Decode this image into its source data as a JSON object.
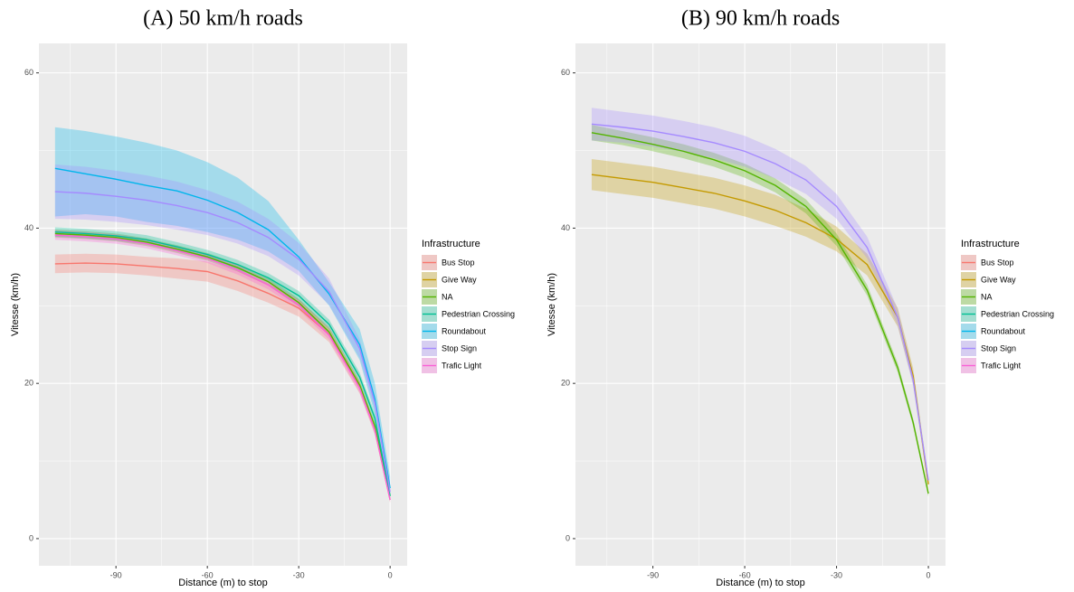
{
  "chart_data": [
    {
      "type": "line",
      "title": "(A) 50 km/h roads",
      "x_label": "Distance (m) to stop",
      "y_label": "Vitesse (km/h)",
      "legend_title": "Infrastructure",
      "legend_position": "right",
      "grid": true,
      "xlim": [
        -115.3,
        5.6
      ],
      "ylim": [
        -3.5,
        63.8
      ],
      "xticks": [
        -90,
        -60,
        -30,
        0
      ],
      "yticks": [
        0,
        20,
        40,
        60
      ],
      "minor_xticks": [
        -105,
        -75,
        -45,
        -15
      ],
      "minor_yticks": [
        10,
        30,
        50
      ],
      "x": [
        -110,
        -100,
        -90,
        -80,
        -70,
        -60,
        -50,
        -40,
        -30,
        -20,
        -10,
        -5,
        0
      ],
      "series": [
        {
          "name": "Bus Stop",
          "color": "#F8766D",
          "values": [
            35.4,
            35.5,
            35.4,
            35.1,
            34.8,
            34.4,
            33.2,
            31.6,
            29.7,
            26.3,
            19.5,
            14,
            5
          ],
          "lower": [
            34.2,
            34.3,
            34.2,
            33.9,
            33.5,
            33.1,
            31.9,
            30.4,
            28.6,
            25.3,
            18.7,
            13.4,
            4.6
          ],
          "upper": [
            36.6,
            36.7,
            36.6,
            36.3,
            36.1,
            35.7,
            34.5,
            32.8,
            30.8,
            27.3,
            20.3,
            14.6,
            5.4
          ]
        },
        {
          "name": "Give Way",
          "color": "#C49A00",
          "values": [
            null,
            null,
            null,
            null,
            null,
            null,
            null,
            null,
            null,
            null,
            null,
            null,
            null
          ],
          "lower": [
            null,
            null,
            null,
            null,
            null,
            null,
            null,
            null,
            null,
            null,
            null,
            null,
            null
          ],
          "upper": [
            null,
            null,
            null,
            null,
            null,
            null,
            null,
            null,
            null,
            null,
            null,
            null,
            null
          ]
        },
        {
          "name": "NA",
          "color": "#53B400",
          "values": [
            39.3,
            39.1,
            38.8,
            38.2,
            37.3,
            36.3,
            34.9,
            33.1,
            30.4,
            26.6,
            19.8,
            14.5,
            5.5
          ],
          "lower": [
            38.8,
            38.6,
            38.3,
            37.7,
            36.8,
            35.8,
            34.4,
            32.6,
            29.9,
            26.1,
            19.3,
            14,
            5.1
          ],
          "upper": [
            39.8,
            39.6,
            39.3,
            38.7,
            37.8,
            36.8,
            35.4,
            33.6,
            30.9,
            27.1,
            20.3,
            15,
            5.9
          ]
        },
        {
          "name": "Pedestrian Crossing",
          "color": "#00C094",
          "values": [
            39.5,
            39.3,
            39.0,
            38.5,
            37.6,
            36.6,
            35.3,
            33.6,
            31.3,
            27.6,
            20.8,
            15.5,
            5.5
          ],
          "lower": [
            38.9,
            38.7,
            38.4,
            37.9,
            37.0,
            36.0,
            34.7,
            33.0,
            30.7,
            27.0,
            20.2,
            14.9,
            5.1
          ],
          "upper": [
            40.1,
            39.9,
            39.6,
            39.1,
            38.2,
            37.2,
            35.9,
            34.2,
            31.9,
            28.2,
            21.4,
            16.1,
            5.9
          ]
        },
        {
          "name": "Roundabout",
          "color": "#00B6EB",
          "values": [
            47.7,
            47.0,
            46.3,
            45.5,
            44.8,
            43.6,
            42.0,
            39.8,
            36.3,
            31.5,
            25,
            18,
            6.5
          ],
          "lower": [
            41.5,
            41.8,
            41.5,
            40.8,
            40.3,
            39.5,
            38.5,
            37,
            34.5,
            30,
            23,
            16,
            5
          ],
          "upper": [
            53,
            52.5,
            51.8,
            51,
            50,
            48.5,
            46.5,
            43.5,
            38.5,
            33,
            27,
            20,
            8
          ]
        },
        {
          "name": "Stop Sign",
          "color": "#A58AFF",
          "values": [
            44.7,
            44.5,
            44.1,
            43.6,
            42.9,
            42,
            40.7,
            38.8,
            36,
            31.8,
            24.5,
            17.5,
            6
          ],
          "lower": [
            41.2,
            41.1,
            40.8,
            40.4,
            39.8,
            39.1,
            38.0,
            36.4,
            33.9,
            30.1,
            23.3,
            16.6,
            5.4
          ],
          "upper": [
            48.2,
            47.9,
            47.4,
            46.8,
            46.0,
            44.9,
            43.4,
            41.2,
            38.1,
            33.5,
            25.7,
            18.4,
            6.6
          ]
        },
        {
          "name": "Trafic Light",
          "color": "#FB61D7",
          "values": [
            39.1,
            38.9,
            38.6,
            38.0,
            37.1,
            36.1,
            34.6,
            32.7,
            30.1,
            26.2,
            19.4,
            14,
            5
          ],
          "lower": [
            38.5,
            38.3,
            38.0,
            37.4,
            36.5,
            35.5,
            34.0,
            32.1,
            29.5,
            25.6,
            18.8,
            13.5,
            4.7
          ],
          "upper": [
            39.7,
            39.5,
            39.2,
            38.6,
            37.7,
            36.7,
            35.2,
            33.3,
            30.7,
            26.8,
            20.0,
            14.5,
            5.3
          ]
        }
      ]
    },
    {
      "type": "line",
      "title": "(B) 90 km/h roads",
      "x_label": "Distance (m) to stop",
      "y_label": "Vitesse (km/h)",
      "legend_title": "Infrastructure",
      "legend_position": "right",
      "grid": true,
      "xlim": [
        -115.3,
        5.6
      ],
      "ylim": [
        -3.5,
        63.8
      ],
      "xticks": [
        -90,
        -60,
        -30,
        0
      ],
      "yticks": [
        0,
        20,
        40,
        60
      ],
      "minor_xticks": [
        -105,
        -75,
        -45,
        -15
      ],
      "minor_yticks": [
        10,
        30,
        50
      ],
      "x": [
        -110,
        -100,
        -90,
        -80,
        -70,
        -60,
        -50,
        -40,
        -30,
        -20,
        -10,
        -5,
        0
      ],
      "series": [
        {
          "name": "Bus Stop",
          "color": "#F8766D",
          "values": [
            null,
            null,
            null,
            null,
            null,
            null,
            null,
            null,
            null,
            null,
            null,
            null,
            null
          ],
          "lower": [
            null,
            null,
            null,
            null,
            null,
            null,
            null,
            null,
            null,
            null,
            null,
            null,
            null
          ],
          "upper": [
            null,
            null,
            null,
            null,
            null,
            null,
            null,
            null,
            null,
            null,
            null,
            null,
            null
          ]
        },
        {
          "name": "Give Way",
          "color": "#C49A00",
          "values": [
            46.9,
            46.4,
            45.9,
            45.2,
            44.5,
            43.5,
            42.3,
            40.7,
            38.6,
            35.3,
            28.5,
            21,
            7
          ],
          "lower": [
            44.9,
            44.4,
            43.9,
            43.2,
            42.5,
            41.5,
            40.3,
            38.9,
            37.0,
            33.9,
            27.3,
            20,
            6.3
          ],
          "upper": [
            48.9,
            48.4,
            47.9,
            47.2,
            46.5,
            45.5,
            44.3,
            42.5,
            40.2,
            36.7,
            29.7,
            22,
            7.7
          ]
        },
        {
          "name": "NA",
          "color": "#53B400",
          "values": [
            52.3,
            51.6,
            50.8,
            49.9,
            48.8,
            47.4,
            45.5,
            42.8,
            38.5,
            32,
            22,
            15,
            5.8
          ],
          "lower": [
            51.3,
            50.7,
            49.9,
            49.0,
            47.9,
            46.5,
            44.6,
            41.9,
            37.7,
            31.3,
            21.4,
            14.5,
            5.4
          ],
          "upper": [
            53.3,
            52.5,
            51.7,
            50.8,
            49.7,
            48.3,
            46.4,
            43.7,
            39.3,
            32.7,
            22.6,
            15.5,
            6.2
          ]
        },
        {
          "name": "Pedestrian Crossing",
          "color": "#00C094",
          "values": [
            null,
            null,
            null,
            null,
            null,
            null,
            null,
            null,
            null,
            null,
            null,
            null,
            null
          ],
          "lower": [
            null,
            null,
            null,
            null,
            null,
            null,
            null,
            null,
            null,
            null,
            null,
            null,
            null
          ],
          "upper": [
            null,
            null,
            null,
            null,
            null,
            null,
            null,
            null,
            null,
            null,
            null,
            null,
            null
          ]
        },
        {
          "name": "Roundabout",
          "color": "#00B6EB",
          "values": [
            null,
            null,
            null,
            null,
            null,
            null,
            null,
            null,
            null,
            null,
            null,
            null,
            null
          ],
          "lower": [
            null,
            null,
            null,
            null,
            null,
            null,
            null,
            null,
            null,
            null,
            null,
            null,
            null
          ],
          "upper": [
            null,
            null,
            null,
            null,
            null,
            null,
            null,
            null,
            null,
            null,
            null,
            null,
            null
          ]
        },
        {
          "name": "Stop Sign",
          "color": "#A58AFF",
          "values": [
            53.4,
            53,
            52.5,
            51.8,
            51,
            49.9,
            48.3,
            46.2,
            42.8,
            37.5,
            28.5,
            20.5,
            7.5
          ],
          "lower": [
            51.3,
            51.0,
            50.5,
            49.8,
            49.0,
            47.9,
            46.4,
            44.4,
            41.2,
            36.1,
            27.4,
            19.7,
            7.0
          ],
          "upper": [
            55.5,
            55.0,
            54.5,
            53.8,
            53.0,
            51.9,
            50.2,
            48.0,
            44.4,
            38.9,
            29.6,
            21.3,
            8.0
          ]
        },
        {
          "name": "Trafic Light",
          "color": "#FB61D7",
          "values": [
            null,
            null,
            null,
            null,
            null,
            null,
            null,
            null,
            null,
            null,
            null,
            null,
            null
          ],
          "lower": [
            null,
            null,
            null,
            null,
            null,
            null,
            null,
            null,
            null,
            null,
            null,
            null,
            null
          ],
          "upper": [
            null,
            null,
            null,
            null,
            null,
            null,
            null,
            null,
            null,
            null,
            null,
            null,
            null
          ]
        }
      ]
    }
  ]
}
